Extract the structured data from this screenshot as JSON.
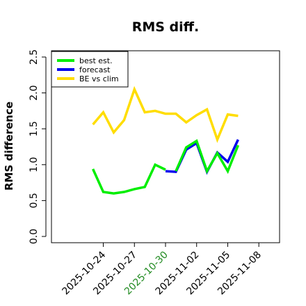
{
  "chart_data": {
    "type": "line",
    "title": "RMS diff.",
    "ylabel": "RMS difference",
    "xlabel": "",
    "ylim": [
      0.0,
      2.5
    ],
    "yticks": [
      "0.0",
      "0.5",
      "1.0",
      "1.5",
      "2.0",
      "2.5"
    ],
    "xlim": [
      "2025-10-19",
      "2025-11-10"
    ],
    "xticks": [
      {
        "date": "2025-10-24",
        "label": "2025-10-24",
        "color": "#000000"
      },
      {
        "date": "2025-10-27",
        "label": "2025-10-27",
        "color": "#000000"
      },
      {
        "date": "2025-10-30",
        "label": "2025-10-30",
        "color": "#228B22"
      },
      {
        "date": "2025-11-02",
        "label": "2025-11-02",
        "color": "#000000"
      },
      {
        "date": "2025-11-05",
        "label": "2025-11-05",
        "color": "#000000"
      },
      {
        "date": "2025-11-08",
        "label": "2025-11-08",
        "color": "#000000"
      }
    ],
    "legend_position": "top-left",
    "series": [
      {
        "name": "best est.",
        "color": "#00ee00",
        "x": [
          "2025-10-23",
          "2025-10-24",
          "2025-10-25",
          "2025-10-26",
          "2025-10-27",
          "2025-10-28",
          "2025-10-29",
          "2025-10-30"
        ],
        "values": [
          0.94,
          0.62,
          0.6,
          0.62,
          0.66,
          0.69,
          1.0,
          0.93
        ]
      },
      {
        "name": "forecast",
        "color": "#0000ee",
        "x": [
          "2025-10-30",
          "2025-10-31",
          "2025-11-01",
          "2025-11-02",
          "2025-11-03",
          "2025-11-04",
          "2025-11-05",
          "2025-11-06"
        ],
        "values": [
          0.91,
          0.9,
          1.21,
          1.3,
          0.9,
          1.17,
          1.04,
          1.35
        ]
      },
      {
        "name": "best est. (cont.)",
        "legend": false,
        "color": "#00ee00",
        "x": [
          "2025-10-31",
          "2025-11-01",
          "2025-11-02",
          "2025-11-03",
          "2025-11-04",
          "2025-11-05",
          "2025-11-06"
        ],
        "values": [
          0.91,
          1.24,
          1.33,
          0.91,
          1.16,
          0.91,
          1.27
        ]
      },
      {
        "name": "BE vs clim",
        "color": "#ffdd00",
        "x": [
          "2025-10-23",
          "2025-10-24",
          "2025-10-25",
          "2025-10-26",
          "2025-10-27",
          "2025-10-28",
          "2025-10-29",
          "2025-10-30",
          "2025-10-31",
          "2025-11-01",
          "2025-11-02",
          "2025-11-03",
          "2025-11-04",
          "2025-11-05",
          "2025-11-06"
        ],
        "values": [
          1.56,
          1.73,
          1.45,
          1.62,
          2.05,
          1.73,
          1.75,
          1.71,
          1.71,
          1.59,
          1.69,
          1.77,
          1.35,
          1.7,
          1.68
        ]
      }
    ]
  }
}
